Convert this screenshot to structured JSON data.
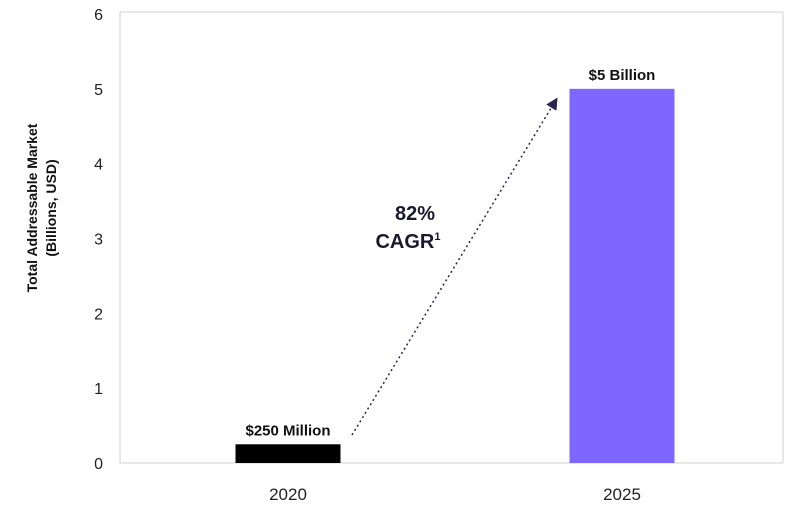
{
  "chart_data": {
    "type": "bar",
    "title": "",
    "xlabel": "",
    "ylabel": "Total Addressable Market",
    "ylabel_line2": "(Billions, USD)",
    "categories": [
      "2020",
      "2025"
    ],
    "values": [
      0.25,
      5
    ],
    "data_labels": [
      "$250 Million",
      "$5 Billion"
    ],
    "bar_colors": [
      "#000000",
      "#7F66FF"
    ],
    "ylim": [
      0,
      6
    ],
    "yticks": [
      0,
      1,
      2,
      3,
      4,
      5,
      6
    ],
    "grid": false,
    "annotation": {
      "line1": "82%",
      "line2": "CAGR",
      "superscript": "1",
      "arrow_color": "#2A2550"
    }
  }
}
